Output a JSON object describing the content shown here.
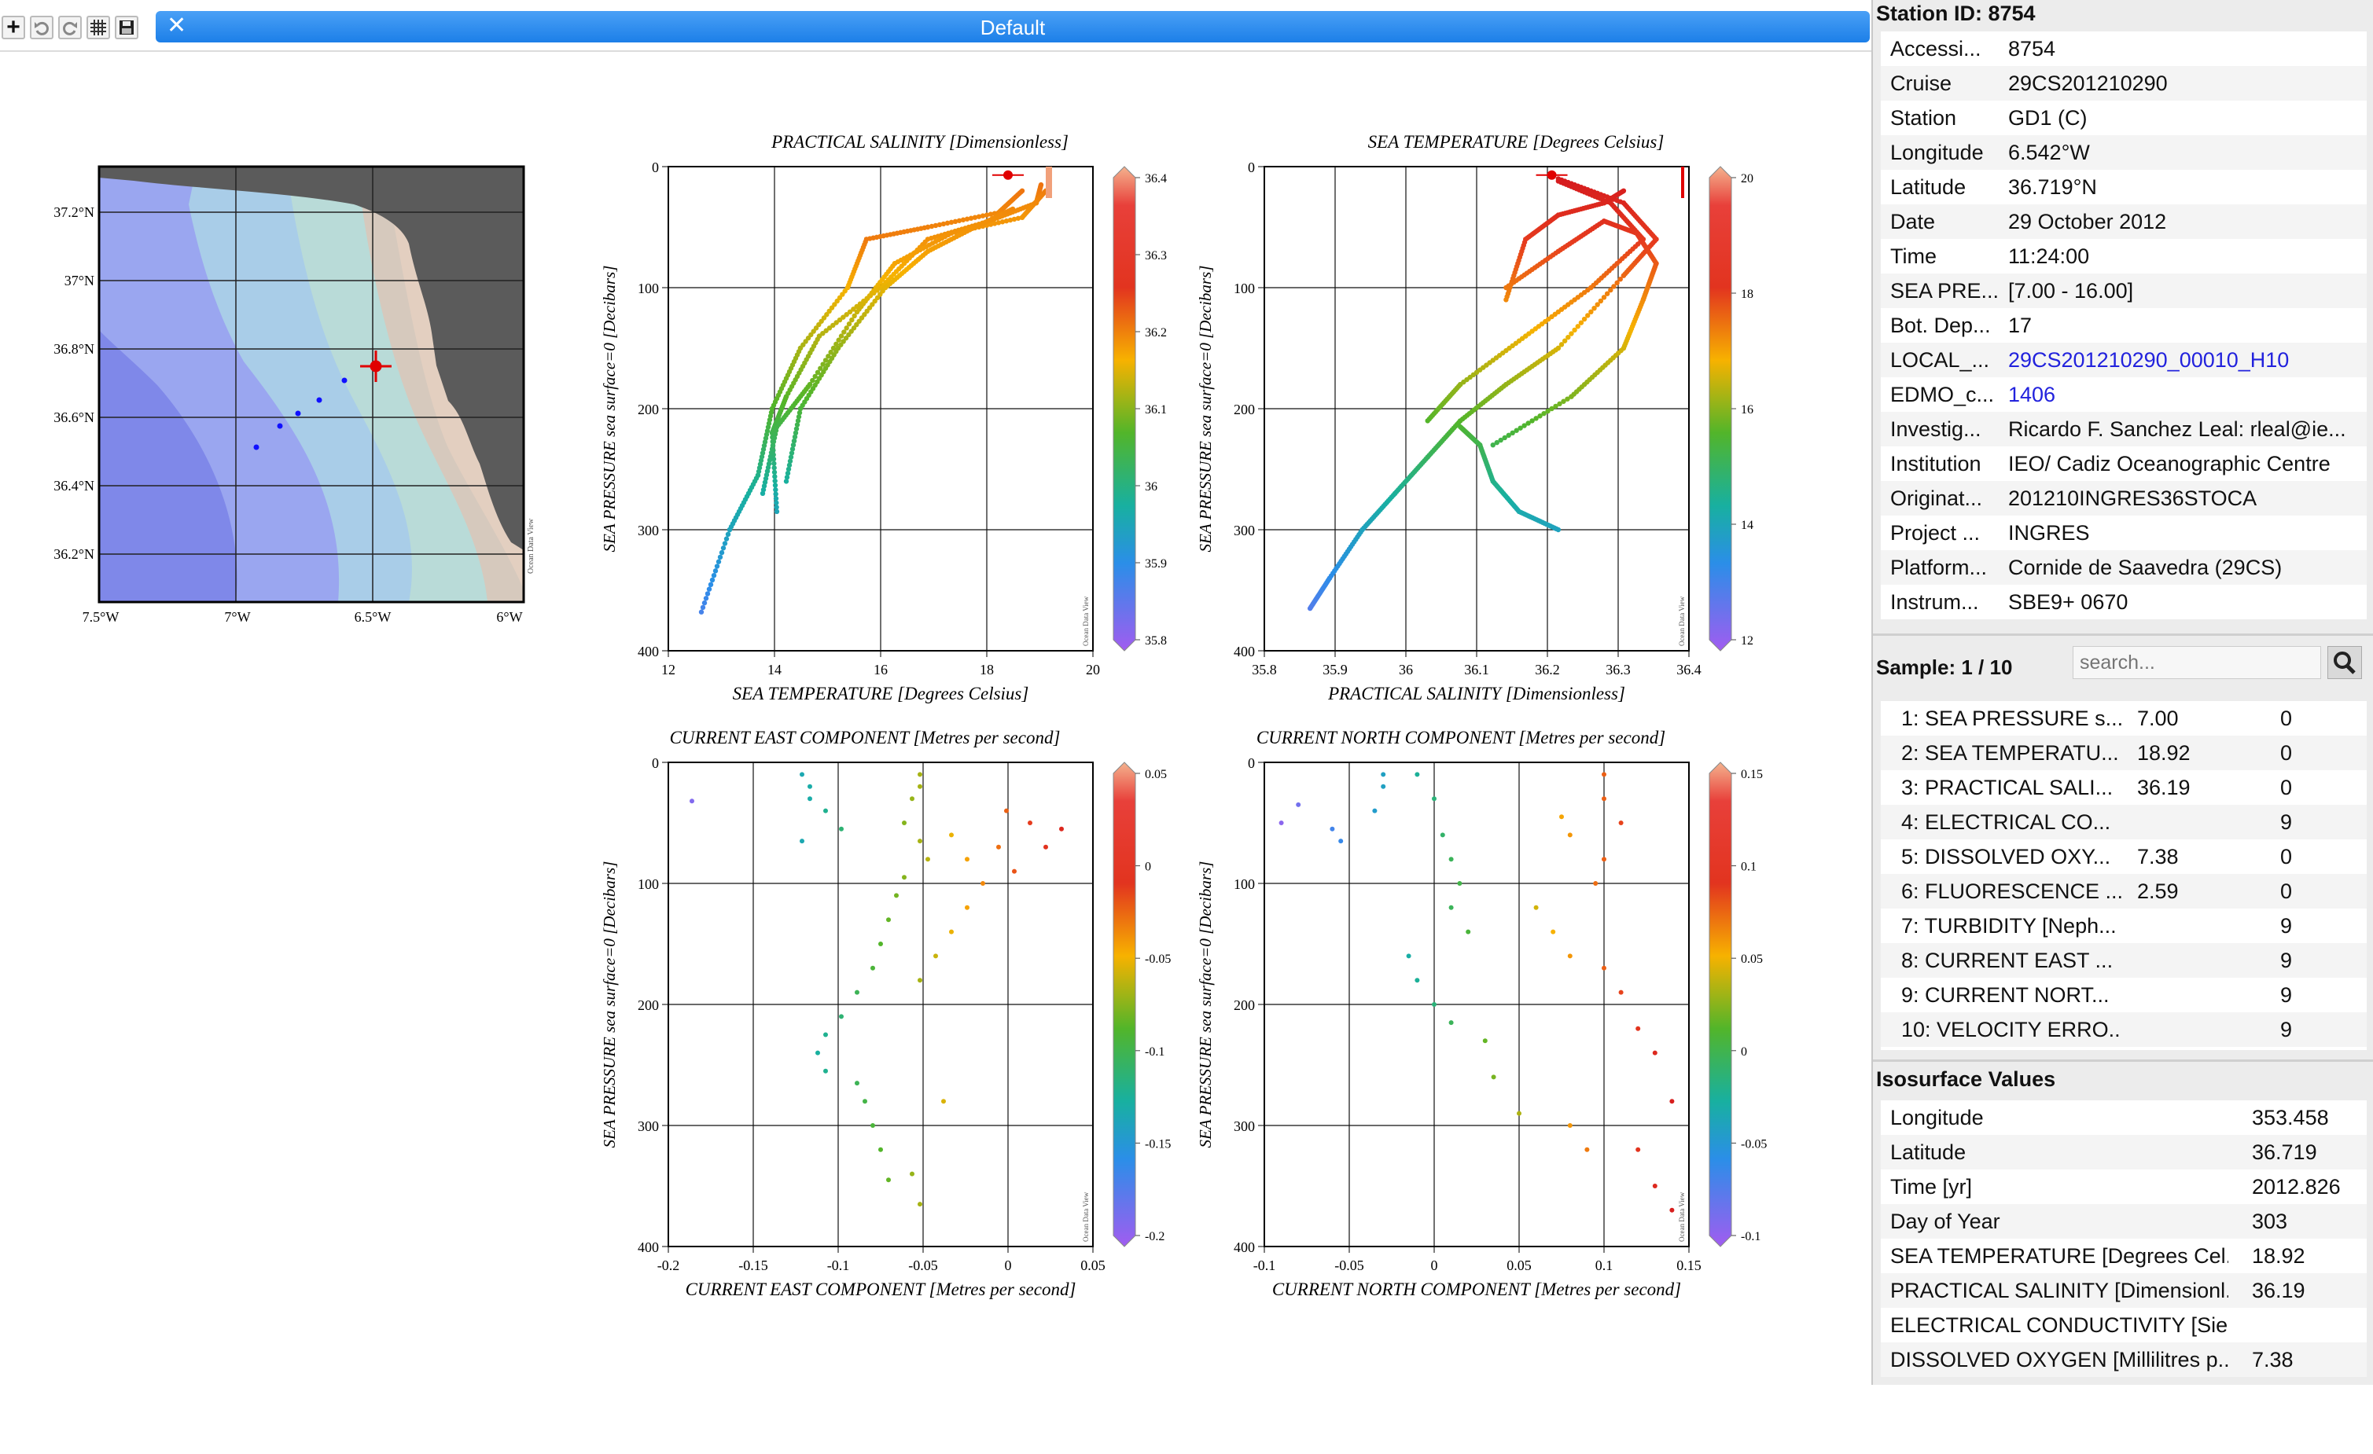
{
  "window": {
    "title": "Default"
  },
  "toolbar": {
    "icons": [
      "zoom-plus-icon",
      "undo-icon",
      "redo-icon",
      "grid-icon",
      "save-icon"
    ],
    "plus": "+"
  },
  "map": {
    "lat_labels": [
      "37.2°N",
      "37°N",
      "36.8°N",
      "36.6°N",
      "36.4°N",
      "36.2°N"
    ],
    "lon_labels": [
      "7.5°W",
      "7°W",
      "6.5°W",
      "6°W"
    ],
    "watermark": "Ocean Data View"
  },
  "plots": {
    "watermark": "Ocean Data View",
    "salinity": {
      "title": "PRACTICAL SALINITY [Dimensionless]",
      "xlabel": "SEA TEMPERATURE [Degrees Celsius]",
      "ylabel": "SEA PRESSURE sea surface=0 [Decibars]",
      "xticks": [
        "12",
        "14",
        "16",
        "18",
        "20"
      ],
      "yticks": [
        "0",
        "100",
        "200",
        "300",
        "400"
      ],
      "cticks": [
        "36.4",
        "36.3",
        "36.2",
        "36.1",
        "36",
        "35.9",
        "35.8"
      ]
    },
    "temperature": {
      "title": "SEA TEMPERATURE [Degrees Celsius]",
      "xlabel": "PRACTICAL SALINITY [Dimensionless]",
      "ylabel": "SEA PRESSURE sea surface=0 [Decibars]",
      "xticks": [
        "35.8",
        "35.9",
        "36",
        "36.1",
        "36.2",
        "36.3",
        "36.4"
      ],
      "yticks": [
        "0",
        "100",
        "200",
        "300",
        "400"
      ],
      "cticks": [
        "20",
        "18",
        "16",
        "14",
        "12"
      ]
    },
    "east": {
      "title": "CURRENT EAST COMPONENT [Metres per second]",
      "xlabel": "CURRENT EAST COMPONENT [Metres per second]",
      "ylabel": "SEA PRESSURE sea surface=0 [Decibars]",
      "xticks": [
        "-0.2",
        "-0.15",
        "-0.1",
        "-0.05",
        "0",
        "0.05"
      ],
      "yticks": [
        "0",
        "100",
        "200",
        "300",
        "400"
      ],
      "cticks": [
        "0.05",
        "0",
        "-0.05",
        "-0.1",
        "-0.15",
        "-0.2"
      ]
    },
    "north": {
      "title": "CURRENT NORTH COMPONENT [Metres per second]",
      "xlabel": "CURRENT NORTH COMPONENT [Metres per second]",
      "ylabel": "SEA PRESSURE sea surface=0 [Decibars]",
      "xticks": [
        "-0.1",
        "-0.05",
        "0",
        "0.05",
        "0.1",
        "0.15"
      ],
      "yticks": [
        "0",
        "100",
        "200",
        "300",
        "400"
      ],
      "cticks": [
        "0.15",
        "0.1",
        "0.05",
        "0",
        "-0.05",
        "-0.1"
      ]
    }
  },
  "station": {
    "header": "Station ID: 8754",
    "rows": [
      {
        "k": "Accessi...",
        "v": "8754"
      },
      {
        "k": "Cruise",
        "v": "29CS201210290"
      },
      {
        "k": "Station",
        "v": "GD1 (C)"
      },
      {
        "k": "Longitude",
        "v": "6.542°W"
      },
      {
        "k": "Latitude",
        "v": "36.719°N"
      },
      {
        "k": "Date",
        "v": "29 October 2012"
      },
      {
        "k": "Time",
        "v": "11:24:00"
      },
      {
        "k": "SEA PRE...",
        "v": "[7.00 - 16.00]"
      },
      {
        "k": "Bot. Dep...",
        "v": "17"
      },
      {
        "k": "LOCAL_...",
        "v": "29CS201210290_00010_H10"
      },
      {
        "k": "EDMO_c...",
        "v": "1406"
      },
      {
        "k": "Investig...",
        "v": "Ricardo F. Sanchez Leal: rleal@ie..."
      },
      {
        "k": "Institution",
        "v": "IEO/ Cadiz Oceanographic Centre"
      },
      {
        "k": "Originat...",
        "v": "201210INGRES36STOCA"
      },
      {
        "k": "Project ...",
        "v": "INGRES"
      },
      {
        "k": "Platform...",
        "v": "Cornide de Saavedra (29CS)"
      },
      {
        "k": "Instrum...",
        "v": "SBE9+ 0670"
      }
    ]
  },
  "sample": {
    "header": "Sample: 1 / 10",
    "search_placeholder": "search...",
    "rows": [
      {
        "k": "1: SEA PRESSURE s...",
        "v": "7.00",
        "q": "0"
      },
      {
        "k": "2: SEA TEMPERATU...",
        "v": "18.92",
        "q": "0"
      },
      {
        "k": "3: PRACTICAL SALI...",
        "v": "36.19",
        "q": "0"
      },
      {
        "k": "4: ELECTRICAL CO...",
        "v": "",
        "q": "9"
      },
      {
        "k": "5: DISSOLVED OXY...",
        "v": "7.38",
        "q": "0"
      },
      {
        "k": "6: FLUORESCENCE ...",
        "v": "2.59",
        "q": "0"
      },
      {
        "k": "7: TURBIDITY [Neph...",
        "v": "",
        "q": "9"
      },
      {
        "k": "8: CURRENT EAST ...",
        "v": "",
        "q": "9"
      },
      {
        "k": "9: CURRENT NORT...",
        "v": "",
        "q": "9"
      },
      {
        "k": "10: VELOCITY ERRO...",
        "v": "",
        "q": "9"
      }
    ]
  },
  "isosurface": {
    "header": "Isosurface Values",
    "rows": [
      {
        "k": "Longitude",
        "v": "353.458"
      },
      {
        "k": "Latitude",
        "v": "36.719"
      },
      {
        "k": "Time [yr]",
        "v": "2012.826"
      },
      {
        "k": "Day of Year",
        "v": "303"
      },
      {
        "k": "SEA TEMPERATURE [Degrees Cel...",
        "v": "18.92"
      },
      {
        "k": "PRACTICAL SALINITY [Dimensionl...",
        "v": "36.19"
      },
      {
        "k": "ELECTRICAL CONDUCTIVITY [Sie...",
        "v": ""
      },
      {
        "k": "DISSOLVED OXYGEN [Millilitres p...",
        "v": "7.38"
      }
    ]
  },
  "colors": {
    "title_bar": "#1c7fe8",
    "land": "#565656",
    "marker": "#e00000",
    "link": "#2222dd"
  }
}
